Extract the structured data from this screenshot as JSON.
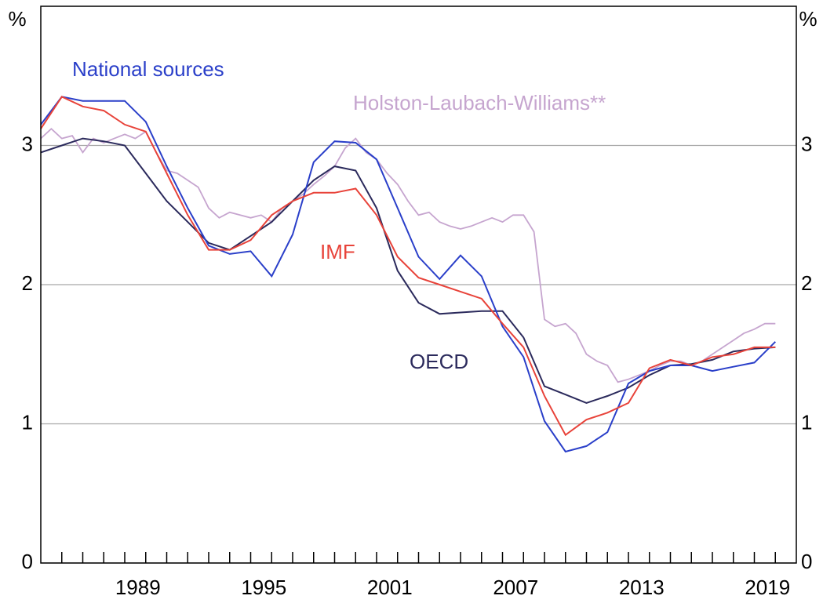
{
  "chart_data": {
    "type": "line",
    "y_unit": "%",
    "x": [
      1984,
      1985,
      1986,
      1987,
      1988,
      1989,
      1990,
      1991,
      1992,
      1993,
      1994,
      1995,
      1996,
      1997,
      1998,
      1999,
      2000,
      2001,
      2002,
      2003,
      2004,
      2005,
      2006,
      2007,
      2008,
      2009,
      2010,
      2011,
      2012,
      2013,
      2014,
      2015,
      2016,
      2017,
      2018,
      2019
    ],
    "series": [
      {
        "name": "National sources",
        "color": "#2a3fc9",
        "values": [
          3.15,
          3.35,
          3.32,
          3.32,
          3.32,
          3.17,
          2.85,
          2.55,
          2.28,
          2.22,
          2.24,
          2.06,
          2.36,
          2.88,
          3.03,
          3.02,
          2.9,
          2.55,
          2.2,
          2.04,
          2.21,
          2.06,
          1.7,
          1.48,
          1.02,
          0.8,
          0.84,
          0.94,
          1.29,
          1.38,
          1.42,
          1.42,
          1.38,
          1.41,
          1.44,
          1.59
        ]
      },
      {
        "name": "IMF",
        "color": "#e8433a",
        "values": [
          3.12,
          3.35,
          3.28,
          3.25,
          3.15,
          3.1,
          2.8,
          2.5,
          2.25,
          2.25,
          2.32,
          2.5,
          2.6,
          2.66,
          2.66,
          2.69,
          2.5,
          2.2,
          2.05,
          2.0,
          1.95,
          1.9,
          1.72,
          1.55,
          1.2,
          0.92,
          1.03,
          1.08,
          1.15,
          1.4,
          1.46,
          1.42,
          1.48,
          1.5,
          1.55,
          1.55
        ]
      },
      {
        "name": "OECD",
        "color": "#2b2a5c",
        "values": [
          2.95,
          3.0,
          3.05,
          3.03,
          3.0,
          2.8,
          2.6,
          2.45,
          2.3,
          2.25,
          2.35,
          2.45,
          2.6,
          2.75,
          2.85,
          2.82,
          2.55,
          2.1,
          1.87,
          1.79,
          1.8,
          1.81,
          1.81,
          1.62,
          1.27,
          1.21,
          1.15,
          1.2,
          1.26,
          1.35,
          1.42,
          1.43,
          1.46,
          1.52,
          1.54,
          1.55
        ]
      },
      {
        "name": "Holston-Laubach-Williams**",
        "color": "#c6a5cf",
        "x": [
          1984,
          1984.5,
          1985,
          1985.5,
          1986,
          1986.5,
          1987,
          1987.5,
          1988,
          1988.5,
          1989,
          1989.5,
          1990,
          1990.5,
          1991,
          1991.5,
          1992,
          1992.5,
          1993,
          1993.5,
          1994,
          1994.5,
          1995,
          1995.5,
          1996,
          1996.5,
          1997,
          1997.5,
          1998,
          1998.5,
          1999,
          1999.5,
          2000,
          2000.5,
          2001,
          2001.5,
          2002,
          2002.5,
          2003,
          2003.5,
          2004,
          2004.5,
          2005,
          2005.5,
          2006,
          2006.5,
          2007,
          2007.5,
          2008,
          2008.5,
          2009,
          2009.5,
          2010,
          2010.5,
          2011,
          2011.5,
          2012,
          2012.5,
          2013,
          2013.5,
          2014,
          2014.5,
          2015,
          2015.5,
          2016,
          2016.5,
          2017,
          2017.5,
          2018,
          2018.5,
          2019
        ],
        "values": [
          3.05,
          3.12,
          3.05,
          3.07,
          2.95,
          3.05,
          3.02,
          3.05,
          3.08,
          3.05,
          3.1,
          2.95,
          2.82,
          2.8,
          2.75,
          2.7,
          2.55,
          2.48,
          2.52,
          2.5,
          2.48,
          2.5,
          2.45,
          2.55,
          2.6,
          2.65,
          2.72,
          2.78,
          2.85,
          2.98,
          3.05,
          2.95,
          2.9,
          2.8,
          2.72,
          2.6,
          2.5,
          2.52,
          2.45,
          2.42,
          2.4,
          2.42,
          2.45,
          2.48,
          2.45,
          2.5,
          2.5,
          2.38,
          1.75,
          1.7,
          1.72,
          1.65,
          1.5,
          1.45,
          1.42,
          1.3,
          1.32,
          1.35,
          1.38,
          1.42,
          1.45,
          1.45,
          1.42,
          1.45,
          1.5,
          1.55,
          1.6,
          1.65,
          1.68,
          1.72,
          1.72
        ]
      }
    ],
    "xlim": [
      1984,
      2020
    ],
    "xticks": [
      1989,
      1995,
      2001,
      2007,
      2013,
      2019
    ],
    "minor_xticks": [
      1985,
      1986,
      1987,
      1988,
      1989,
      1990,
      1991,
      1992,
      1993,
      1994,
      1995,
      1996,
      1997,
      1998,
      1999,
      2000,
      2001,
      2002,
      2003,
      2004,
      2005,
      2006,
      2007,
      2008,
      2009,
      2010,
      2011,
      2012,
      2013,
      2014,
      2015,
      2016,
      2017,
      2018,
      2019
    ],
    "ylim": [
      0,
      4
    ],
    "yticks": [
      0,
      1,
      2,
      3
    ],
    "grid": true
  }
}
